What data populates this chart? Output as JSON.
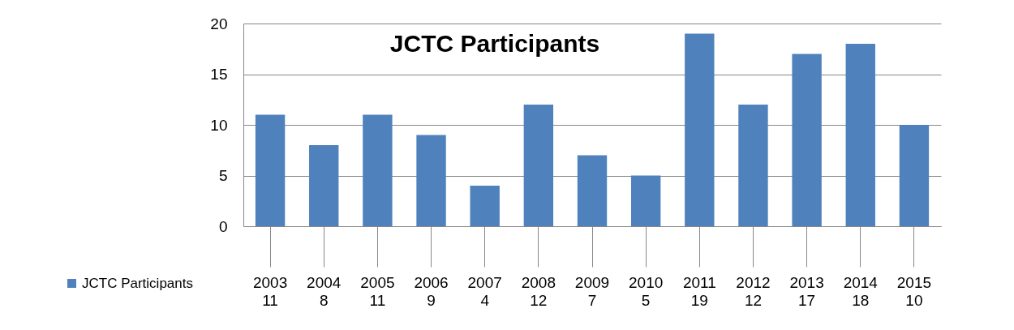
{
  "chart_data": {
    "type": "bar",
    "title": "JCTC Participants",
    "categories": [
      "2003",
      "2004",
      "2005",
      "2006",
      "2007",
      "2008",
      "2009",
      "2010",
      "2011",
      "2012",
      "2013",
      "2014",
      "2015"
    ],
    "series": [
      {
        "name": "JCTC Participants",
        "color": "#4f81bd",
        "values": [
          11,
          8,
          11,
          9,
          4,
          12,
          7,
          5,
          19,
          12,
          17,
          18,
          10
        ]
      }
    ],
    "ylim": [
      0,
      20
    ],
    "yticks": [
      0,
      5,
      10,
      15,
      20
    ],
    "grid": "y",
    "legend": "bottom",
    "data_labels": true
  }
}
